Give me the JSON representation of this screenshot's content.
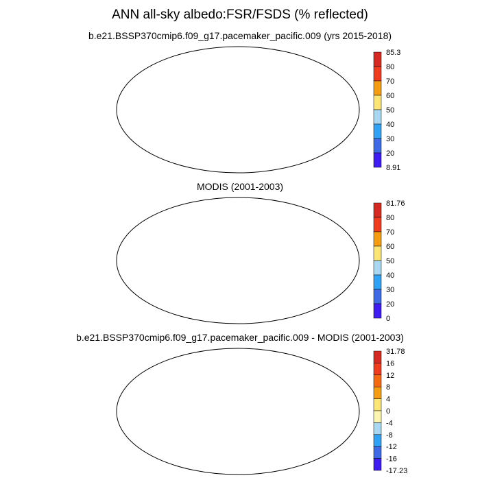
{
  "title": "ANN all-sky albedo:FSR/FSDS (% reflected)",
  "panels": [
    {
      "id": "model",
      "title": "b.e21.BSSP370cmip6.f09_g17.pacemaker_pacific.009 (yrs 2015-2018)",
      "colorbar": {
        "labels": [
          "85.3",
          "80",
          "70",
          "60",
          "50",
          "40",
          "30",
          "20",
          "8.91"
        ],
        "colors": [
          "#d42a22",
          "#f03c1e",
          "#f59d12",
          "#fde575",
          "#a9d8f2",
          "#2fa2f5",
          "#3e6ae6",
          "#3f1cf2"
        ]
      }
    },
    {
      "id": "obs",
      "title": "MODIS (2001-2003)",
      "colorbar": {
        "labels": [
          "81.76",
          "80",
          "70",
          "60",
          "50",
          "40",
          "30",
          "20",
          "0"
        ],
        "colors": [
          "#d42a22",
          "#f03c1e",
          "#f59d12",
          "#fde575",
          "#a9d8f2",
          "#2fa2f5",
          "#3e6ae6",
          "#3f1cf2"
        ]
      }
    },
    {
      "id": "diff",
      "title": "b.e21.BSSP370cmip6.f09_g17.pacemaker_pacific.009 - MODIS (2001-2003)",
      "colorbar": {
        "labels": [
          "31.78",
          "16",
          "12",
          "8",
          "4",
          "0",
          "-4",
          "-8",
          "-12",
          "-16",
          "-17.23"
        ],
        "colors": [
          "#d42a22",
          "#f03c1e",
          "#f56a10",
          "#f59d12",
          "#fde575",
          "#fdf6b0",
          "#a9d8f2",
          "#2fa2f5",
          "#3e6ae6",
          "#3f1cf2"
        ]
      }
    }
  ]
}
